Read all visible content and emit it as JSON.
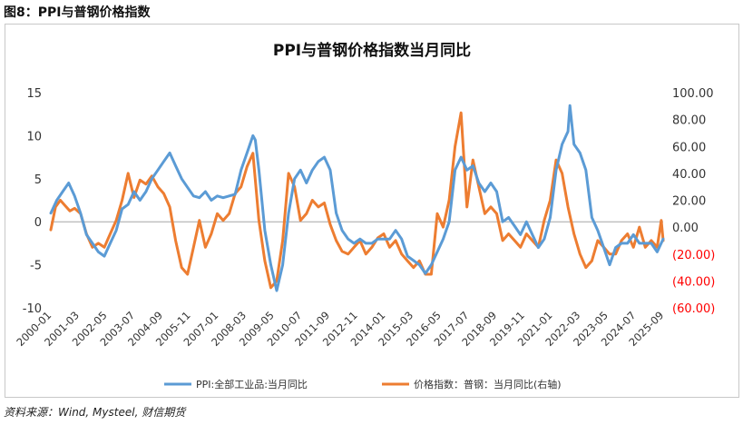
{
  "figure_label": "图8：PPI与普钢价格指数",
  "source": "资料来源：Wind, Mysteel, 财信期货",
  "colors": {
    "ppi": "#5b9bd5",
    "steel": "#ed7d31",
    "negative_right": "#ff0000",
    "zero_line": "#a6a6a6"
  },
  "chart_data": {
    "type": "line",
    "title": "PPI与普钢价格指数当月同比",
    "left_axis": {
      "ylim": [
        -10,
        15
      ],
      "ticks": [
        "15",
        "10",
        "5",
        "0",
        "-5",
        "-10"
      ]
    },
    "right_axis": {
      "ylim": [
        -60,
        100
      ],
      "ticks": [
        "100.00",
        "80.00",
        "60.00",
        "40.00",
        "20.00",
        "0.00",
        "(20.00)",
        "(40.00)",
        "(60.00)"
      ]
    },
    "x_range": [
      2000.0,
      2025.75
    ],
    "x_tick_labels": [
      "2000-01",
      "2001-03",
      "2002-05",
      "2003-07",
      "2004-09",
      "2005-11",
      "2007-01",
      "2008-03",
      "2009-05",
      "2010-07",
      "2011-09",
      "2012-11",
      "2014-01",
      "2015-03",
      "2016-05",
      "2017-07",
      "2018-09",
      "2019-11",
      "2021-01",
      "2022-03",
      "2023-05",
      "2024-07",
      "2025-09"
    ],
    "series": [
      {
        "name": "PPI:全部工业品:当月同比",
        "axis": "left",
        "color": "#5b9bd5",
        "x": [
          2000.0,
          2000.25,
          2000.5,
          2000.75,
          2001.0,
          2001.25,
          2001.5,
          2001.75,
          2002.0,
          2002.25,
          2002.5,
          2002.75,
          2003.0,
          2003.25,
          2003.5,
          2003.75,
          2004.0,
          2004.25,
          2004.5,
          2004.75,
          2005.0,
          2005.25,
          2005.5,
          2005.75,
          2006.0,
          2006.25,
          2006.5,
          2006.75,
          2007.0,
          2007.25,
          2007.5,
          2007.75,
          2008.0,
          2008.25,
          2008.5,
          2008.6,
          2008.75,
          2009.0,
          2009.25,
          2009.5,
          2009.75,
          2010.0,
          2010.25,
          2010.5,
          2010.75,
          2011.0,
          2011.25,
          2011.5,
          2011.75,
          2012.0,
          2012.25,
          2012.5,
          2012.75,
          2013.0,
          2013.25,
          2013.5,
          2013.75,
          2014.0,
          2014.25,
          2014.5,
          2014.75,
          2015.0,
          2015.25,
          2015.5,
          2015.75,
          2016.0,
          2016.25,
          2016.5,
          2016.75,
          2017.0,
          2017.25,
          2017.5,
          2017.75,
          2018.0,
          2018.25,
          2018.5,
          2018.75,
          2019.0,
          2019.25,
          2019.5,
          2019.75,
          2020.0,
          2020.25,
          2020.5,
          2020.75,
          2021.0,
          2021.25,
          2021.5,
          2021.75,
          2021.83,
          2022.0,
          2022.25,
          2022.5,
          2022.75,
          2023.0,
          2023.25,
          2023.5,
          2023.75,
          2024.0,
          2024.25,
          2024.5,
          2024.75,
          2025.0,
          2025.25,
          2025.5,
          2025.75
        ],
        "values": [
          1.0,
          2.5,
          3.5,
          4.5,
          3.0,
          1.0,
          -1.5,
          -2.5,
          -3.5,
          -4.0,
          -2.5,
          -1.0,
          1.5,
          2.0,
          3.5,
          2.5,
          3.5,
          5.0,
          6.0,
          7.0,
          8.0,
          6.5,
          5.0,
          4.0,
          3.0,
          2.8,
          3.5,
          2.5,
          3.0,
          2.8,
          3.0,
          3.2,
          6.0,
          8.0,
          10.0,
          9.5,
          6.0,
          -1.0,
          -5.0,
          -8.0,
          -5.0,
          1.0,
          5.0,
          6.0,
          4.5,
          6.0,
          7.0,
          7.5,
          6.0,
          1.0,
          -1.0,
          -2.0,
          -2.5,
          -2.0,
          -2.5,
          -2.5,
          -2.0,
          -2.0,
          -2.0,
          -1.0,
          -2.0,
          -4.0,
          -4.5,
          -5.0,
          -6.0,
          -5.0,
          -3.5,
          -2.0,
          0.0,
          6.0,
          7.5,
          6.0,
          6.5,
          4.5,
          3.5,
          4.5,
          3.5,
          0.0,
          0.5,
          -0.5,
          -1.5,
          0.0,
          -1.5,
          -3.0,
          -2.0,
          0.5,
          6.0,
          9.0,
          10.5,
          13.5,
          9.0,
          8.0,
          6.0,
          0.5,
          -1.0,
          -3.0,
          -5.0,
          -3.0,
          -2.5,
          -2.5,
          -1.5,
          -2.5,
          -2.5,
          -2.5,
          -3.5,
          -2.0
        ]
      },
      {
        "name": "价格指数：普钢：当月同比(右轴)",
        "axis": "right",
        "color": "#ed7d31",
        "x": [
          2000.0,
          2000.2,
          2000.4,
          2000.6,
          2000.8,
          2001.0,
          2001.25,
          2001.5,
          2001.75,
          2002.0,
          2002.25,
          2002.5,
          2002.75,
          2003.0,
          2003.25,
          2003.5,
          2003.75,
          2004.0,
          2004.25,
          2004.5,
          2004.75,
          2005.0,
          2005.25,
          2005.5,
          2005.75,
          2006.0,
          2006.25,
          2006.5,
          2006.75,
          2007.0,
          2007.25,
          2007.5,
          2007.75,
          2008.0,
          2008.25,
          2008.5,
          2008.75,
          2009.0,
          2009.25,
          2009.5,
          2009.75,
          2010.0,
          2010.25,
          2010.5,
          2010.75,
          2011.0,
          2011.25,
          2011.5,
          2011.75,
          2012.0,
          2012.25,
          2012.5,
          2012.75,
          2013.0,
          2013.25,
          2013.5,
          2013.75,
          2014.0,
          2014.25,
          2014.5,
          2014.75,
          2015.0,
          2015.25,
          2015.5,
          2015.75,
          2016.0,
          2016.25,
          2016.5,
          2016.75,
          2017.0,
          2017.25,
          2017.5,
          2017.75,
          2018.0,
          2018.25,
          2018.5,
          2018.75,
          2019.0,
          2019.25,
          2019.5,
          2019.75,
          2020.0,
          2020.25,
          2020.5,
          2020.75,
          2021.0,
          2021.25,
          2021.5,
          2021.75,
          2022.0,
          2022.25,
          2022.5,
          2022.75,
          2023.0,
          2023.25,
          2023.5,
          2023.75,
          2024.0,
          2024.25,
          2024.5,
          2024.75,
          2025.0,
          2025.25,
          2025.5,
          2025.67,
          2025.75
        ],
        "values": [
          -2.0,
          15.0,
          20.0,
          16.0,
          12.0,
          14.0,
          10.0,
          -5.0,
          -15.0,
          -12.0,
          -15.0,
          -5.0,
          5.0,
          20.0,
          40.0,
          22.0,
          35.0,
          32.0,
          38.0,
          30.0,
          25.0,
          15.0,
          -10.0,
          -30.0,
          -35.0,
          -15.0,
          5.0,
          -15.0,
          -5.0,
          10.0,
          5.0,
          10.0,
          25.0,
          30.0,
          45.0,
          55.0,
          5.0,
          -25.0,
          -45.0,
          -40.0,
          -10.0,
          40.0,
          30.0,
          5.0,
          10.0,
          20.0,
          15.0,
          18.0,
          2.0,
          -10.0,
          -18.0,
          -20.0,
          -15.0,
          -10.0,
          -20.0,
          -15.0,
          -8.0,
          -5.0,
          -15.0,
          -10.0,
          -20.0,
          -25.0,
          -30.0,
          -25.0,
          -35.0,
          -35.0,
          10.0,
          0.0,
          20.0,
          60.0,
          85.0,
          15.0,
          50.0,
          30.0,
          10.0,
          15.0,
          10.0,
          -10.0,
          -5.0,
          -10.0,
          -15.0,
          -5.0,
          -10.0,
          -15.0,
          5.0,
          20.0,
          50.0,
          40.0,
          15.0,
          -5.0,
          -20.0,
          -30.0,
          -25.0,
          -10.0,
          -15.0,
          -20.0,
          -20.0,
          -10.0,
          -5.0,
          -15.0,
          0.0,
          -15.0,
          -10.0,
          -15.0,
          5.0,
          -10.0
        ]
      }
    ],
    "legend": {
      "placement": "bottom",
      "entries": [
        "PPI:全部工业品:当月同比",
        "价格指数：普钢：当月同比(右轴)"
      ]
    },
    "grid": false
  }
}
